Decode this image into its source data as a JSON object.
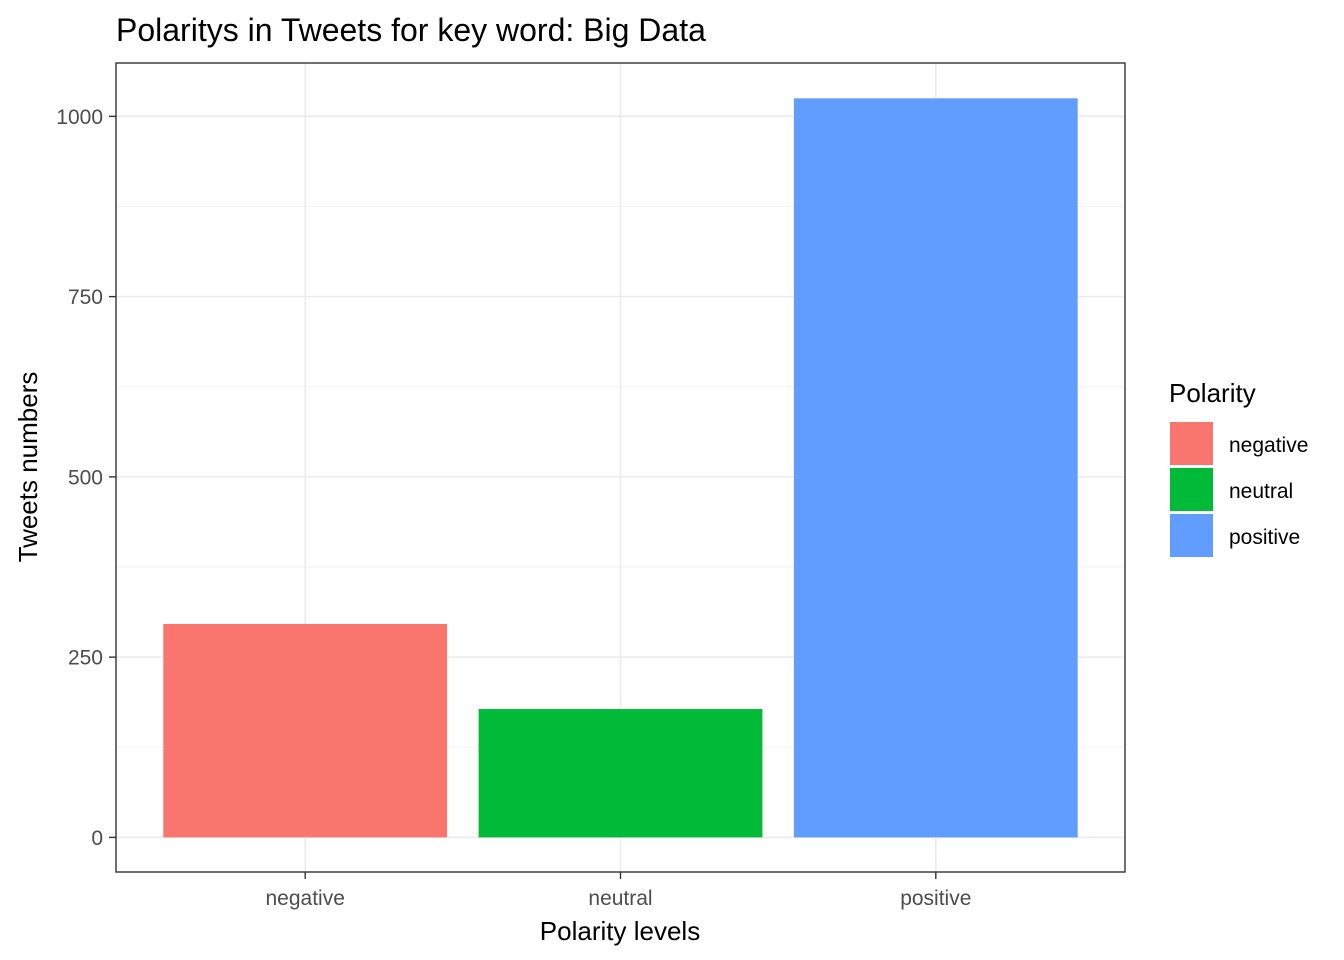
{
  "chart_data": {
    "type": "bar",
    "title": "Polaritys in Tweets for key word: Big Data",
    "xlabel": "Polarity levels",
    "ylabel": "Tweets numbers",
    "categories": [
      "negative",
      "neutral",
      "positive"
    ],
    "values": [
      296,
      178,
      1025
    ],
    "colors": [
      "#F8766D",
      "#00BA38",
      "#619CFF"
    ],
    "ylim": [
      -48,
      1074
    ],
    "yticks": [
      0,
      250,
      500,
      750,
      1000
    ],
    "grid": true,
    "legend": {
      "title": "Polarity",
      "placement": "right",
      "entries": [
        "negative",
        "neutral",
        "positive"
      ]
    }
  }
}
